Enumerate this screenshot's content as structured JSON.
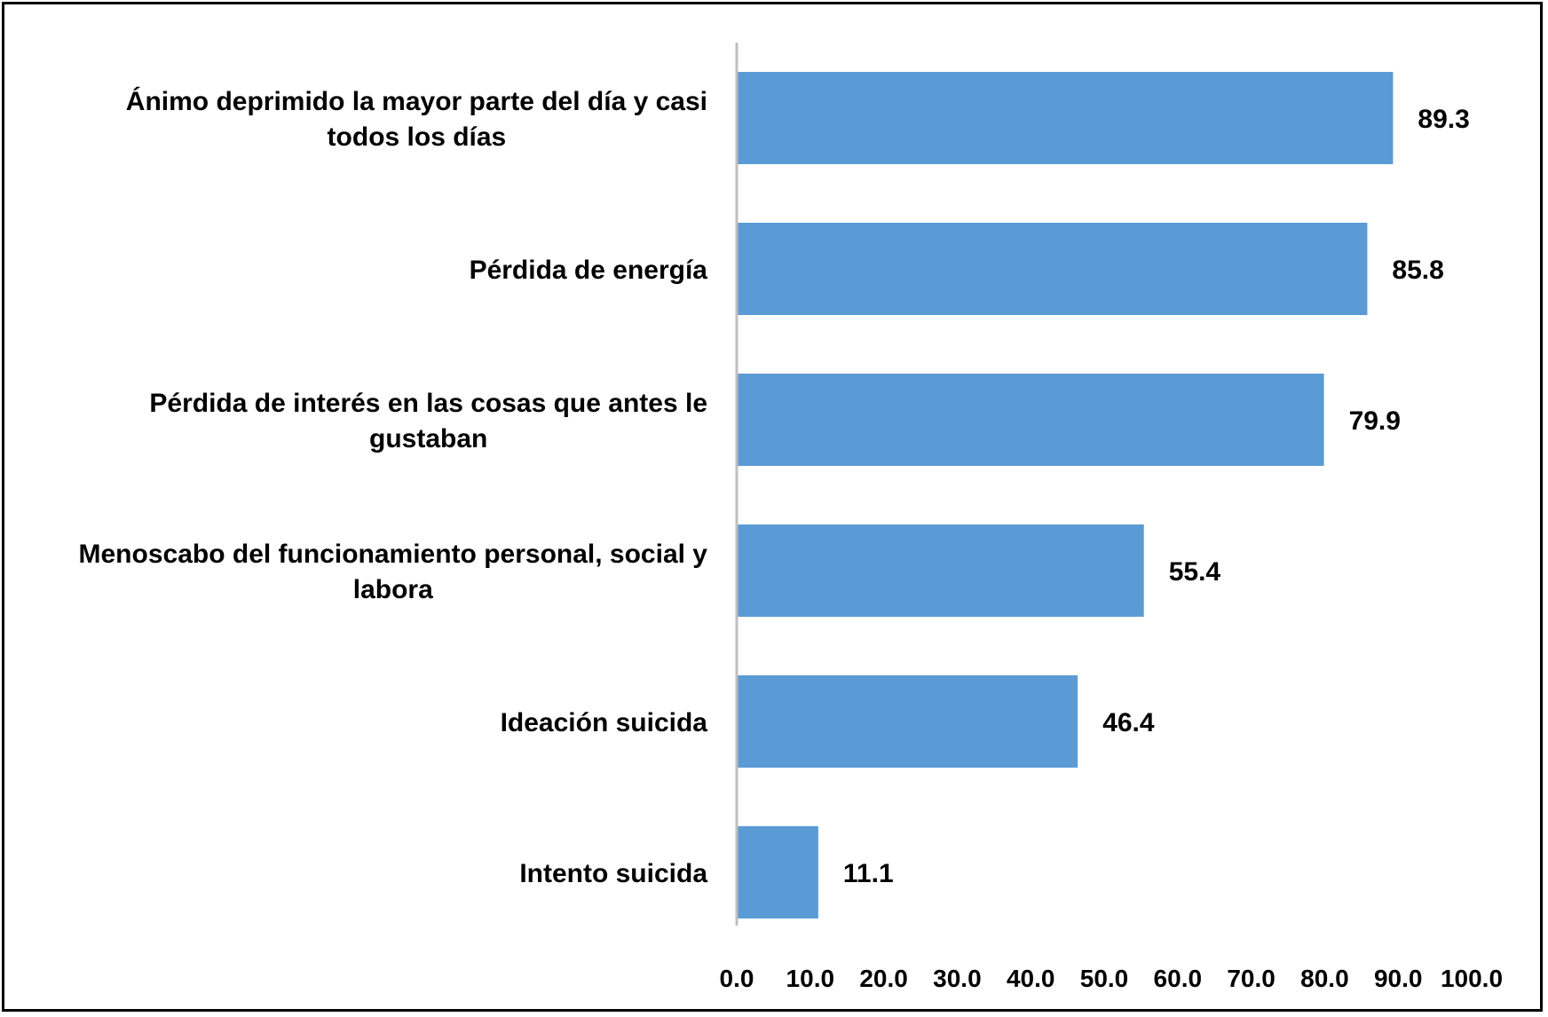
{
  "chart_data": {
    "type": "bar",
    "orientation": "horizontal",
    "title": "",
    "xlabel": "",
    "ylabel": "",
    "categories": [
      [
        "Ánimo deprimido la mayor parte del día y casi",
        "todos los días"
      ],
      [
        "Pérdida de energía"
      ],
      [
        "Pérdida de interés en las cosas que antes le",
        "gustaban"
      ],
      [
        "Menoscabo del funcionamiento personal, social y",
        "labora"
      ],
      [
        "Ideación suicida"
      ],
      [
        "Intento suicida"
      ]
    ],
    "values": [
      89.3,
      85.8,
      79.9,
      55.4,
      46.4,
      11.1
    ],
    "value_labels": [
      "89.3",
      "85.8",
      "79.9",
      "55.4",
      "46.4",
      "11.1"
    ],
    "xlim": [
      0,
      100
    ],
    "x_ticks": [
      0,
      10,
      20,
      30,
      40,
      50,
      60,
      70,
      80,
      90,
      100
    ],
    "x_tick_labels": [
      "0.0",
      "10.0",
      "20.0",
      "30.0",
      "40.0",
      "50.0",
      "60.0",
      "70.0",
      "80.0",
      "90.0",
      "100.0"
    ],
    "grid": false,
    "legend": "none",
    "colors": {
      "bar": "#5B9BD5",
      "axis": "#BFBFBF",
      "border": "#000000"
    }
  }
}
